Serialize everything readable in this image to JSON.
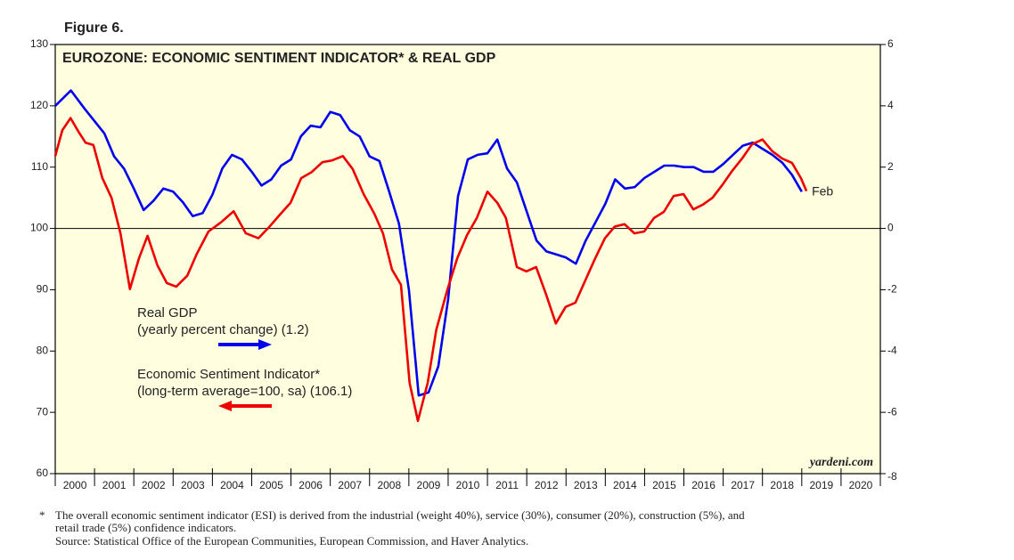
{
  "chart_data": {
    "type": "line",
    "figure_label": "Figure 6.",
    "title": "EUROZONE: ECONOMIC SENTIMENT INDICATOR* & REAL GDP",
    "categories": [
      "2000",
      "2001",
      "2002",
      "2003",
      "2004",
      "2005",
      "2006",
      "2007",
      "2008",
      "2009",
      "2010",
      "2011",
      "2012",
      "2013",
      "2014",
      "2015",
      "2016",
      "2017",
      "2018",
      "2019",
      "2020"
    ],
    "xlim": [
      2000,
      2021
    ],
    "xticks": [
      2000,
      2001,
      2002,
      2003,
      2004,
      2005,
      2006,
      2007,
      2008,
      2009,
      2010,
      2011,
      2012,
      2013,
      2014,
      2015,
      2016,
      2017,
      2018,
      2019,
      2020,
      2021
    ],
    "ylim": [
      60,
      130
    ],
    "yticks": [
      60,
      70,
      80,
      90,
      100,
      110,
      120,
      130
    ],
    "y2lim": [
      -8,
      6
    ],
    "y2ticks": [
      -8,
      -6,
      -4,
      -2,
      0,
      2,
      4,
      6
    ],
    "hlines": [
      100
    ],
    "series": [
      {
        "name": "Real GDP",
        "note": "(yearly percent change) (1.2)",
        "color": "#0000ee",
        "axis": "y2",
        "x": [
          2000,
          2000.4,
          2000.75,
          2001,
          2001.25,
          2001.5,
          2001.75,
          2002,
          2002.25,
          2002.5,
          2002.75,
          2003,
          2003.25,
          2003.5,
          2003.75,
          2004,
          2004.25,
          2004.5,
          2004.75,
          2005,
          2005.25,
          2005.5,
          2005.75,
          2006,
          2006.25,
          2006.5,
          2006.75,
          2007,
          2007.25,
          2007.5,
          2007.75,
          2008,
          2008.25,
          2008.5,
          2008.75,
          2009,
          2009.25,
          2009.5,
          2009.75,
          2010,
          2010.25,
          2010.5,
          2010.75,
          2011,
          2011.25,
          2011.5,
          2011.75,
          2012,
          2012.25,
          2012.5,
          2012.75,
          2013,
          2013.25,
          2013.5,
          2013.75,
          2014,
          2014.25,
          2014.5,
          2014.75,
          2015,
          2015.25,
          2015.5,
          2015.75,
          2016,
          2016.25,
          2016.5,
          2016.75,
          2017,
          2017.25,
          2017.5,
          2017.75,
          2018,
          2018.25,
          2018.5,
          2018.75,
          2019
        ],
        "values": [
          4.0,
          4.5,
          3.9,
          3.5,
          3.1,
          2.35,
          1.95,
          1.3,
          0.6,
          0.9,
          1.3,
          1.2,
          0.85,
          0.4,
          0.5,
          1.1,
          1.95,
          2.4,
          2.25,
          1.85,
          1.4,
          1.6,
          2.05,
          2.25,
          3.0,
          3.35,
          3.3,
          3.8,
          3.7,
          3.2,
          3.0,
          2.35,
          2.2,
          1.2,
          0.15,
          -2.0,
          -5.45,
          -5.35,
          -4.5,
          -2.3,
          1.05,
          2.25,
          2.4,
          2.45,
          2.9,
          1.95,
          1.5,
          0.55,
          -0.4,
          -0.75,
          -0.85,
          -0.95,
          -1.15,
          -0.4,
          0.2,
          0.8,
          1.6,
          1.3,
          1.35,
          1.65,
          1.85,
          2.05,
          2.05,
          2.0,
          2.0,
          1.85,
          1.85,
          2.1,
          2.4,
          2.7,
          2.8,
          2.6,
          2.4,
          2.15,
          1.75,
          1.2
        ]
      },
      {
        "name": "Economic Sentiment Indicator*",
        "note": "(long-term average=100, sa) (106.1)",
        "color": "#ee0000",
        "x": [
          2000,
          2000.18,
          2000.39,
          2000.59,
          2000.77,
          2000.97,
          2001.2,
          2001.43,
          2001.66,
          2001.9,
          2002.13,
          2002.35,
          2002.6,
          2002.84,
          2003.08,
          2003.36,
          2003.6,
          2003.9,
          2004.22,
          2004.54,
          2004.85,
          2005.17,
          2005.44,
          2005.74,
          2005.99,
          2006.26,
          2006.53,
          2006.8,
          2007.05,
          2007.32,
          2007.57,
          2007.85,
          2008.12,
          2008.34,
          2008.57,
          2008.8,
          2009.02,
          2009.23,
          2009.48,
          2009.7,
          2009.98,
          2010.23,
          2010.48,
          2010.73,
          2011,
          2011.25,
          2011.47,
          2011.75,
          2011.99,
          2012.24,
          2012.49,
          2012.74,
          2012.99,
          2013.24,
          2013.49,
          2013.74,
          2013.99,
          2014.24,
          2014.49,
          2014.74,
          2014.99,
          2015.24,
          2015.49,
          2015.74,
          2015.99,
          2016.24,
          2016.49,
          2016.73,
          2016.98,
          2017.23,
          2017.48,
          2017.73,
          2018,
          2018.25,
          2018.5,
          2018.75,
          2018.98,
          2019.12
        ],
        "values": [
          111.8,
          116,
          118,
          115.8,
          114,
          113.6,
          108.2,
          105,
          99.2,
          90.1,
          95.1,
          98.8,
          94,
          91.1,
          90.5,
          92.3,
          95.8,
          99.5,
          101,
          102.8,
          99.2,
          98.4,
          100.2,
          102.4,
          104.2,
          108.2,
          109.2,
          110.8,
          111.1,
          111.8,
          109.7,
          105.6,
          102.4,
          99.2,
          93.3,
          90.8,
          74.8,
          68.6,
          74.8,
          83.5,
          90,
          95.1,
          98.9,
          101.7,
          106,
          104.2,
          101.7,
          93.7,
          93,
          93.7,
          89.3,
          84.5,
          87.2,
          87.9,
          91.5,
          95.1,
          98.4,
          100.3,
          100.7,
          99.2,
          99.5,
          101.7,
          102.7,
          105.3,
          105.6,
          103.1,
          103.9,
          105,
          107.1,
          109.4,
          111.4,
          113.7,
          114.5,
          112.6,
          111.4,
          110.7,
          108.2,
          106.1
        ]
      }
    ],
    "annotation": {
      "text": "Feb"
    },
    "watermark": "yardeni.com",
    "footnote": {
      "marker": "*",
      "lines": [
        "The overall economic sentiment indicator (ESI) is derived from the industrial (weight 40%), service (30%), consumer (20%), construction (5%), and",
        "retail trade (5%) confidence indicators."
      ],
      "source": "Source: Statistical Office of the European Communities, European Commission, and Haver Analytics."
    }
  }
}
